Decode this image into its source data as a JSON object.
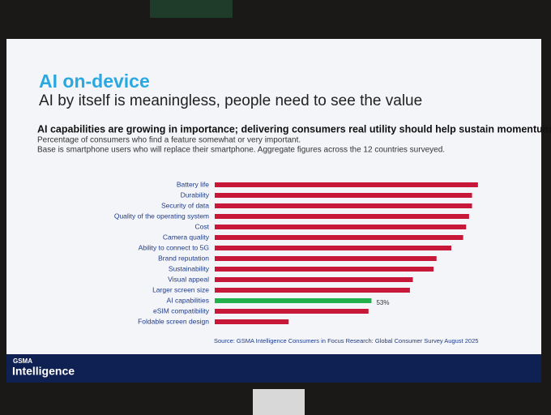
{
  "slide": {
    "title": "AI on-device",
    "subtitle": "AI by itself is meaningless, people need to see the value",
    "logo_top": "GSMA",
    "logo_bottom": "Intelligence"
  },
  "chart_data": {
    "type": "bar",
    "orientation": "horizontal",
    "title": "AI capabilities are growing in importance; delivering consumers real utility should help sustain momentum",
    "subtitle": [
      "Percentage of consumers who find a feature somewhat or very important.",
      "Base is smartphone users who will replace their smartphone. Aggregate figures across the 12 countries surveyed."
    ],
    "source": "Source: GSMA Intelligence Consumers in Focus Research: Global Consumer Survey August 2025",
    "categories": [
      "Battery life",
      "Durability",
      "Security of data",
      "Quality of the operating system",
      "Cost",
      "Camera quality",
      "Ability to connect to 5G",
      "Brand reputation",
      "Sustainability",
      "Visual appeal",
      "Larger screen size",
      "AI capabilities",
      "eSIM compatibility",
      "Foldable screen design"
    ],
    "values": [
      89,
      87,
      87,
      86,
      85,
      84,
      80,
      75,
      74,
      67,
      66,
      53,
      52,
      25
    ],
    "value_labels": [
      null,
      null,
      null,
      null,
      null,
      null,
      null,
      null,
      null,
      null,
      null,
      "53%",
      null,
      null
    ],
    "colors": [
      "#c8183a",
      "#c8183a",
      "#c8183a",
      "#c8183a",
      "#c8183a",
      "#c8183a",
      "#c8183a",
      "#c8183a",
      "#c8183a",
      "#c8183a",
      "#c8183a",
      "#22b14c",
      "#c8183a",
      "#c8183a"
    ]
  }
}
